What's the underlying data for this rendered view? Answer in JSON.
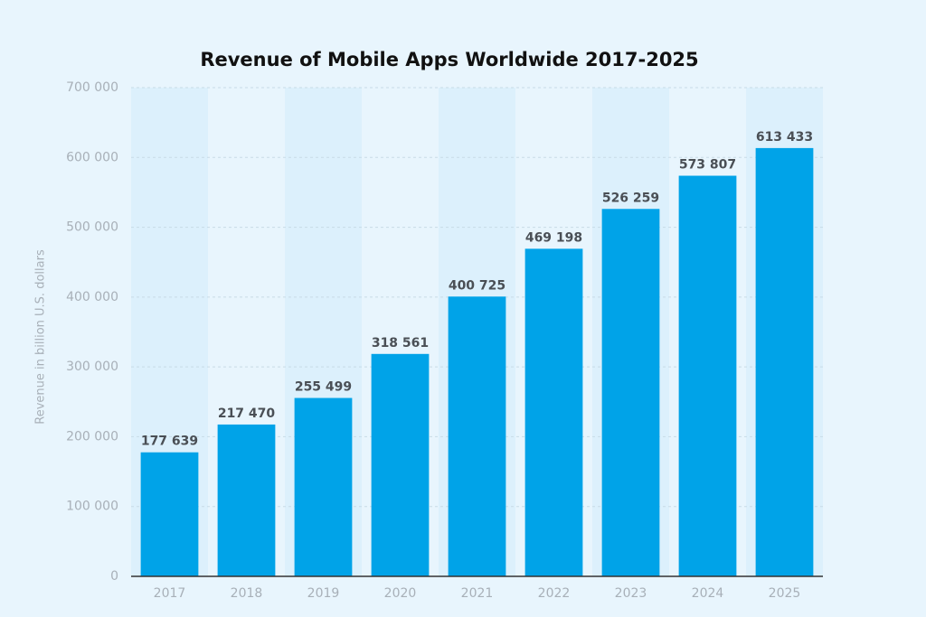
{
  "chart_data": {
    "type": "bar",
    "title": "Revenue of Mobile Apps Worldwide 2017-2025",
    "y_label": "Revenue in billion U.S. dollars",
    "categories": [
      "2017",
      "2018",
      "2019",
      "2020",
      "2021",
      "2022",
      "2023",
      "2024",
      "2025"
    ],
    "values": [
      177639,
      217470,
      255499,
      318561,
      400725,
      469198,
      526259,
      573807,
      613433
    ],
    "value_labels": [
      "177 639",
      "217 470",
      "255 499",
      "318 561",
      "400 725",
      "469 198",
      "526 259",
      "573 807",
      "613 433"
    ],
    "color": "#00a3e8",
    "ylim": [
      0,
      700000
    ],
    "yticks": [
      0,
      {
        "value": 100000,
        "label": "100 000"
      },
      {
        "value": 200000,
        "label": "200 000"
      },
      {
        "value": 300000,
        "label": "300 000"
      },
      {
        "value": 400000,
        "label": "400 000"
      },
      {
        "value": 500000,
        "label": "500 000"
      },
      {
        "value": 600000,
        "label": "600 000"
      },
      {
        "value": 700000,
        "label": "700 000"
      }
    ],
    "grid": true
  }
}
